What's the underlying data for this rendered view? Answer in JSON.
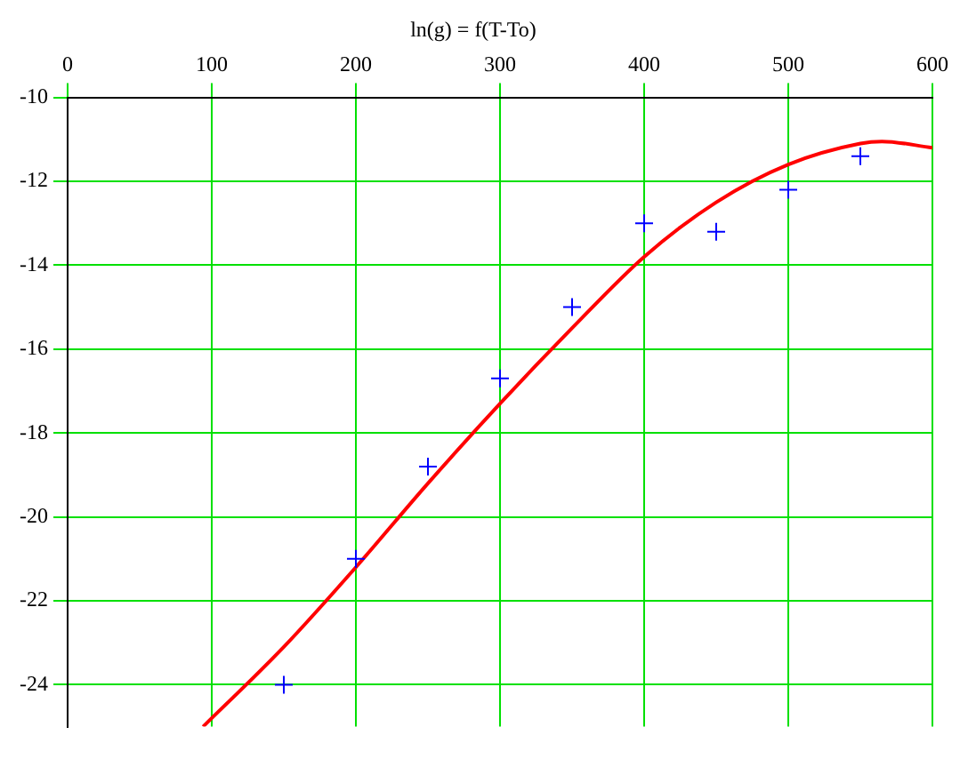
{
  "chart_data": {
    "type": "scatter",
    "title": "ln(g) = f(T-To)",
    "xlim": [
      0,
      600
    ],
    "xticks": [
      0,
      100,
      200,
      300,
      400,
      500,
      600
    ],
    "ylim": [
      -25,
      -10
    ],
    "yticks": [
      -10,
      -12,
      -14,
      -16,
      -18,
      -20,
      -22,
      -24
    ],
    "grid": true,
    "series": [
      {
        "type": "scatter",
        "marker": "cross",
        "color": "#0000ff",
        "x": [
          150,
          200,
          250,
          300,
          350,
          400,
          450,
          500,
          550
        ],
        "values": [
          -24,
          -21,
          -18.8,
          -16.7,
          -15,
          -13,
          -13.2,
          -12.2,
          -11.4
        ]
      },
      {
        "type": "line",
        "marker": "none",
        "line_style": "solid",
        "color": "#ff0000",
        "x": [
          94,
          150,
          200,
          250,
          300,
          350,
          400,
          450,
          500,
          550,
          565,
          600
        ],
        "values": [
          -25,
          -23.1,
          -21.2,
          -19.2,
          -17.3,
          -15.5,
          -13.8,
          -12.5,
          -11.6,
          -11.1,
          -11.05,
          -11.2
        ]
      }
    ]
  }
}
